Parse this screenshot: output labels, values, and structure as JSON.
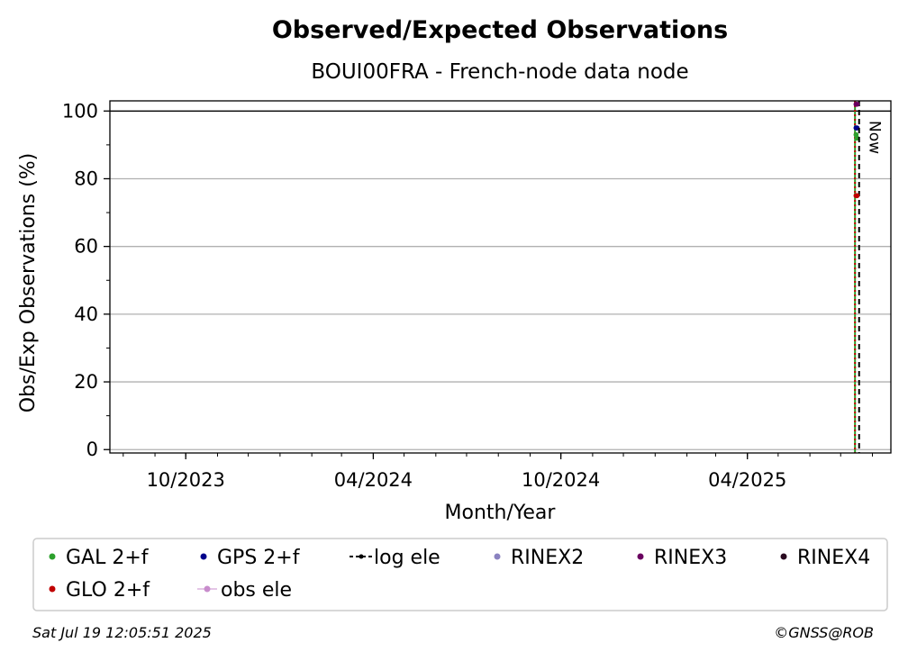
{
  "chart_data": {
    "type": "line",
    "title": "Observed/Expected Observations",
    "subtitle": "BOUI00FRA - French-node data node",
    "xlabel": "Month/Year",
    "ylabel": "Obs/Exp Observations (%)",
    "xlim": [
      "2023-07-19",
      "2025-08-19"
    ],
    "ylim": [
      -1,
      103
    ],
    "x_ticks": [
      "2023-10-01",
      "2024-04-01",
      "2024-10-01",
      "2025-04-01"
    ],
    "x_tick_labels": [
      "10/2023",
      "04/2024",
      "10/2024",
      "04/2025"
    ],
    "y_ticks": [
      0,
      20,
      40,
      60,
      80,
      100
    ],
    "y_tick_labels": [
      "0",
      "20",
      "40",
      "60",
      "80",
      "100"
    ],
    "grid": "y-major",
    "reference_line": 100,
    "now_date": "2025-07-19",
    "now_label": "Now",
    "legend_position": "bottom",
    "series": [
      {
        "name": "GAL 2+f",
        "color": "#2ca02c",
        "marker": "dot",
        "x": [
          "2025-07-16",
          "2025-07-17"
        ],
        "y": [
          93,
          92
        ]
      },
      {
        "name": "GPS 2+f",
        "color": "#00008b",
        "marker": "dot",
        "x": [
          "2025-07-16",
          "2025-07-17"
        ],
        "y": [
          95,
          95
        ]
      },
      {
        "name": "log ele",
        "color": "#000000",
        "marker": "dashed-line",
        "x": [
          "2025-07-19",
          "2025-07-19"
        ],
        "y": [
          -1,
          103
        ]
      },
      {
        "name": "RINEX2",
        "color": "#8a82c0",
        "marker": "dot",
        "x": [],
        "y": []
      },
      {
        "name": "RINEX3",
        "color": "#6a0060",
        "marker": "dot",
        "x": [
          "2025-07-16",
          "2025-07-17"
        ],
        "y": [
          102,
          102
        ]
      },
      {
        "name": "RINEX4",
        "color": "#2a0a20",
        "marker": "dot",
        "x": [],
        "y": []
      },
      {
        "name": "GLO 2+f",
        "color": "#c00000",
        "marker": "dot",
        "x": [
          "2025-07-16",
          "2025-07-17"
        ],
        "y": [
          75,
          75
        ]
      },
      {
        "name": "obs ele",
        "color": "#c88ccc",
        "marker": "dot-line",
        "x": [],
        "y": []
      }
    ],
    "vertical_lines": [
      {
        "x": "2025-07-15",
        "color": "#2ca02c",
        "style": "solid"
      },
      {
        "x": "2025-07-15",
        "color": "#c00000",
        "style": "dotted"
      }
    ]
  },
  "footer": {
    "timestamp": "Sat Jul 19 12:05:51 2025",
    "credit": "©GNSS@ROB"
  }
}
